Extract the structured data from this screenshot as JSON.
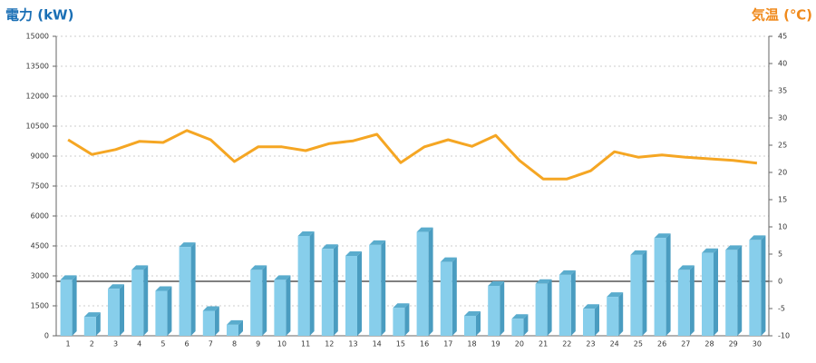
{
  "chart_data": {
    "type": "bar-line",
    "y_title": "電力 (kW)",
    "y2_title": "気温 (℃)",
    "categories": [
      "1",
      "2",
      "3",
      "4",
      "5",
      "6",
      "7",
      "8",
      "9",
      "10",
      "11",
      "12",
      "13",
      "14",
      "15",
      "16",
      "17",
      "18",
      "19",
      "20",
      "21",
      "22",
      "23",
      "24",
      "25",
      "26",
      "27",
      "28",
      "29",
      "30"
    ],
    "series": [
      {
        "type": "bar",
        "color": "#87ceeb",
        "values": [
          2800,
          950,
          2350,
          3300,
          2250,
          4450,
          1250,
          550,
          3300,
          2800,
          5000,
          4350,
          4000,
          4550,
          1400,
          5200,
          3700,
          1000,
          2500,
          850,
          2600,
          3050,
          1350,
          1950,
          4050,
          4900,
          3300,
          4150,
          4300,
          4800
        ]
      },
      {
        "type": "line",
        "axis": "y2",
        "color": "#f5a623",
        "values": [
          26,
          23.3,
          24.2,
          25.7,
          25.5,
          27.7,
          26,
          22,
          24.7,
          24.7,
          24,
          25.3,
          25.8,
          27,
          21.8,
          24.7,
          26,
          24.8,
          26.8,
          22.2,
          18.8,
          18.8,
          20.3,
          23.8,
          22.8,
          23.2,
          22.8,
          22.5,
          22.2,
          21.7
        ]
      }
    ],
    "ylim": [
      0,
      15000
    ],
    "yticks": [
      0,
      1500,
      3000,
      4500,
      6000,
      7500,
      9000,
      10500,
      12000,
      13500,
      15000
    ],
    "y2lim": [
      -10,
      45
    ],
    "y2ticks": [
      -10,
      -5,
      0,
      5,
      10,
      15,
      20,
      25,
      30,
      35,
      40,
      45
    ],
    "grid": true
  }
}
